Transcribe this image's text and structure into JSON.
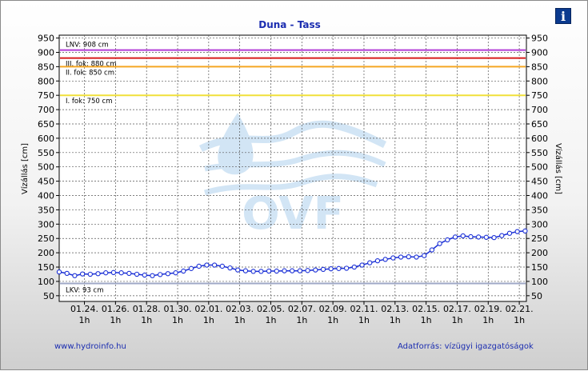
{
  "info_icon": "info-icon",
  "footer": {
    "left_link": "www.hydroinfo.hu",
    "right_text": "Adatforrás: vízügyi igazgatóságok"
  },
  "watermark": {
    "text": "OVF"
  },
  "chart_data": {
    "type": "line",
    "title": "Duna - Tass",
    "ylabel_left": "Vízállás [cm]",
    "ylabel_right": "Vízállás [cm]",
    "xlabel": "",
    "ylim": [
      30,
      960
    ],
    "y_ticks": [
      50,
      100,
      150,
      200,
      250,
      300,
      350,
      400,
      450,
      500,
      550,
      600,
      650,
      700,
      750,
      800,
      850,
      900,
      950
    ],
    "x_range": [
      "01.22. 10:00",
      "02.21. 12:00"
    ],
    "x_ticks": [
      {
        "date": "01.24.",
        "hour": "1h",
        "x": "01.24. 01:00"
      },
      {
        "date": "01.26.",
        "hour": "1h",
        "x": "01.26. 01:00"
      },
      {
        "date": "01.28.",
        "hour": "1h",
        "x": "01.28. 01:00"
      },
      {
        "date": "01.30.",
        "hour": "1h",
        "x": "01.30. 01:00"
      },
      {
        "date": "02.01.",
        "hour": "1h",
        "x": "02.01. 01:00"
      },
      {
        "date": "02.03.",
        "hour": "1h",
        "x": "02.03. 01:00"
      },
      {
        "date": "02.05.",
        "hour": "1h",
        "x": "02.05. 01:00"
      },
      {
        "date": "02.07.",
        "hour": "1h",
        "x": "02.07. 01:00"
      },
      {
        "date": "02.09.",
        "hour": "1h",
        "x": "02.09. 01:00"
      },
      {
        "date": "02.11.",
        "hour": "1h",
        "x": "02.11. 01:00"
      },
      {
        "date": "02.13.",
        "hour": "1h",
        "x": "02.13. 01:00"
      },
      {
        "date": "02.15.",
        "hour": "1h",
        "x": "02.15. 01:00"
      },
      {
        "date": "02.17.",
        "hour": "1h",
        "x": "02.17. 01:00"
      },
      {
        "date": "02.19.",
        "hour": "1h",
        "x": "02.19. 01:00"
      },
      {
        "date": "02.21.",
        "hour": "1h",
        "x": "02.21. 01:00"
      }
    ],
    "grid": true,
    "reference_lines": [
      {
        "label": "LNV: 908 cm",
        "value": 908,
        "color": "#b23bd6"
      },
      {
        "label": "III. fok: 880 cm",
        "value": 880,
        "color": "#d81c1c"
      },
      {
        "label": "II. fok: 850 cm",
        "value": 850,
        "color": "#f5a623"
      },
      {
        "label": "I. fok: 750 cm",
        "value": 750,
        "color": "#f0e03a"
      },
      {
        "label": "LKV: 93 cm",
        "value": 93,
        "color": "#9fa8c7"
      }
    ],
    "series": [
      {
        "color": "#1a2fd6",
        "points": [
          {
            "x": "01.22. 10:00",
            "y": 133
          },
          {
            "x": "01.22. 22:00",
            "y": 128
          },
          {
            "x": "01.23. 10:00",
            "y": 120
          },
          {
            "x": "01.23. 22:00",
            "y": 126
          },
          {
            "x": "01.24. 10:00",
            "y": 125
          },
          {
            "x": "01.24. 22:00",
            "y": 127
          },
          {
            "x": "01.25. 10:00",
            "y": 130
          },
          {
            "x": "01.25. 22:00",
            "y": 131
          },
          {
            "x": "01.26. 10:00",
            "y": 130
          },
          {
            "x": "01.26. 22:00",
            "y": 128
          },
          {
            "x": "01.27. 10:00",
            "y": 125
          },
          {
            "x": "01.27. 22:00",
            "y": 122
          },
          {
            "x": "01.28. 10:00",
            "y": 120
          },
          {
            "x": "01.28. 22:00",
            "y": 124
          },
          {
            "x": "01.29. 10:00",
            "y": 127
          },
          {
            "x": "01.29. 22:00",
            "y": 130
          },
          {
            "x": "01.30. 10:00",
            "y": 136
          },
          {
            "x": "01.30. 22:00",
            "y": 145
          },
          {
            "x": "01.31. 10:00",
            "y": 153
          },
          {
            "x": "01.31. 22:00",
            "y": 157
          },
          {
            "x": "02.01. 10:00",
            "y": 157
          },
          {
            "x": "02.01. 22:00",
            "y": 153
          },
          {
            "x": "02.02. 10:00",
            "y": 147
          },
          {
            "x": "02.02. 22:00",
            "y": 140
          },
          {
            "x": "02.03. 10:00",
            "y": 137
          },
          {
            "x": "02.03. 22:00",
            "y": 135
          },
          {
            "x": "02.04. 10:00",
            "y": 135
          },
          {
            "x": "02.04. 22:00",
            "y": 136
          },
          {
            "x": "02.05. 10:00",
            "y": 136
          },
          {
            "x": "02.05. 22:00",
            "y": 137
          },
          {
            "x": "02.06. 10:00",
            "y": 137
          },
          {
            "x": "02.06. 22:00",
            "y": 137
          },
          {
            "x": "02.07. 10:00",
            "y": 138
          },
          {
            "x": "02.07. 22:00",
            "y": 140
          },
          {
            "x": "02.08. 10:00",
            "y": 142
          },
          {
            "x": "02.08. 22:00",
            "y": 144
          },
          {
            "x": "02.09. 10:00",
            "y": 145
          },
          {
            "x": "02.09. 22:00",
            "y": 146
          },
          {
            "x": "02.10. 10:00",
            "y": 150
          },
          {
            "x": "02.10. 22:00",
            "y": 157
          },
          {
            "x": "02.11. 10:00",
            "y": 165
          },
          {
            "x": "02.11. 22:00",
            "y": 172
          },
          {
            "x": "02.12. 10:00",
            "y": 177
          },
          {
            "x": "02.12. 22:00",
            "y": 182
          },
          {
            "x": "02.13. 10:00",
            "y": 185
          },
          {
            "x": "02.13. 22:00",
            "y": 186
          },
          {
            "x": "02.14. 10:00",
            "y": 185
          },
          {
            "x": "02.14. 22:00",
            "y": 190
          },
          {
            "x": "02.15. 10:00",
            "y": 210
          },
          {
            "x": "02.15. 22:00",
            "y": 232
          },
          {
            "x": "02.16. 10:00",
            "y": 245
          },
          {
            "x": "02.16. 22:00",
            "y": 255
          },
          {
            "x": "02.17. 10:00",
            "y": 259
          },
          {
            "x": "02.17. 22:00",
            "y": 256
          },
          {
            "x": "02.18. 10:00",
            "y": 255
          },
          {
            "x": "02.18. 22:00",
            "y": 254
          },
          {
            "x": "02.19. 10:00",
            "y": 253
          },
          {
            "x": "02.19. 22:00",
            "y": 260
          },
          {
            "x": "02.20. 10:00",
            "y": 268
          },
          {
            "x": "02.20. 22:00",
            "y": 274
          },
          {
            "x": "02.21. 10:00",
            "y": 276
          }
        ]
      }
    ]
  }
}
